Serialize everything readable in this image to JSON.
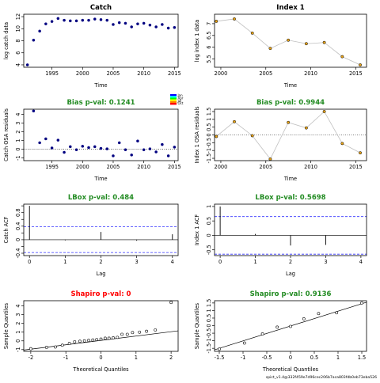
{
  "chart_data": [
    {
      "type": "scatter",
      "title": "Catch",
      "title_color": "#000000",
      "xlabel": "Time",
      "ylabel": "log catch data",
      "xlim": [
        1990.4,
        2015.6
      ],
      "ylim": [
        3.6,
        12.4
      ],
      "xticks": [
        1995,
        2000,
        2005,
        2010,
        2015
      ],
      "yticks": [
        4,
        6,
        8,
        10,
        12
      ],
      "connect": false,
      "point_style": "filled-navy",
      "x": [
        1991,
        1992,
        1993,
        1994,
        1995,
        1996,
        1997,
        1998,
        1999,
        2000,
        2001,
        2002,
        2003,
        2004,
        2005,
        2006,
        2007,
        2008,
        2009,
        2010,
        2011,
        2012,
        2013,
        2014,
        2015
      ],
      "y": [
        4.0,
        8.1,
        9.6,
        10.8,
        11.2,
        11.7,
        11.4,
        11.3,
        11.3,
        11.4,
        11.4,
        11.6,
        11.5,
        11.4,
        10.7,
        11.0,
        10.9,
        10.3,
        10.8,
        10.9,
        10.6,
        10.3,
        10.7,
        10.1,
        10.2
      ]
    },
    {
      "type": "line",
      "title": "Index 1",
      "title_color": "#000000",
      "xlabel": "Time",
      "ylabel": "log index 1 data",
      "xlim": [
        1999.3,
        2016.2
      ],
      "ylim": [
        5.15,
        7.4
      ],
      "xticks": [
        2000,
        2005,
        2010,
        2015
      ],
      "yticks": [
        5.5,
        6.0,
        6.5,
        7.0
      ],
      "connect": true,
      "point_style": "orange",
      "x": [
        1999.5,
        2001.5,
        2003.5,
        2005.5,
        2007.5,
        2009.5,
        2011.5,
        2013.5,
        2015.5
      ],
      "y": [
        7.1,
        7.2,
        6.6,
        5.95,
        6.3,
        6.15,
        6.2,
        5.6,
        5.25
      ]
    },
    {
      "type": "scatter",
      "title": "Bias p-val: 0.1241",
      "title_color": "#228B22",
      "xlabel": "Time",
      "ylabel": "Catch OSA residuals",
      "xlim": [
        1990.4,
        2015.6
      ],
      "ylim": [
        -1.3,
        4.6
      ],
      "xticks": [
        1995,
        2000,
        2005,
        2010,
        2015
      ],
      "yticks": [
        -1,
        0,
        1,
        2,
        3,
        4
      ],
      "hline": 0,
      "hline_style": "dotted",
      "connect": false,
      "point_style": "filled-navy",
      "x": [
        1992,
        1993,
        1994,
        1995,
        1996,
        1997,
        1998,
        1999,
        2000,
        2001,
        2002,
        2003,
        2004,
        2005,
        2006,
        2007,
        2008,
        2009,
        2010,
        2011,
        2012,
        2013,
        2014,
        2015
      ],
      "y": [
        4.4,
        0.75,
        1.2,
        0.15,
        1.05,
        -0.35,
        0.3,
        -0.05,
        0.35,
        0.2,
        0.3,
        0.1,
        0.05,
        -0.75,
        0.75,
        -0.05,
        -0.65,
        0.95,
        -0.05,
        0.05,
        -0.3,
        0.55,
        -0.75,
        0.25
      ],
      "legend": {
        "placement": "top-right",
        "entries": [
          "Jan",
          "Apr",
          "Jul",
          "Oct"
        ],
        "colors": [
          "#0000ff",
          "#00ffff",
          "#00ff00",
          "#ffff00",
          "#ff8000",
          "#ff0000"
        ]
      }
    },
    {
      "type": "line",
      "title": "Bias p-val: 0.9944",
      "title_color": "#228B22",
      "xlabel": "Time",
      "ylabel": "Index 1 OSA residuals",
      "xlim": [
        1999.3,
        2016.2
      ],
      "ylim": [
        -1.65,
        1.65
      ],
      "xticks": [
        2000,
        2005,
        2010,
        2015
      ],
      "yticks": [
        -1.5,
        -1.0,
        -0.5,
        0.0,
        0.5,
        1.0,
        1.5
      ],
      "ytick_labels": [
        "-1.5",
        "-1",
        "-0.5",
        "0",
        "0.5",
        "1",
        "1.5"
      ],
      "hline": 0,
      "hline_style": "dotted",
      "connect": true,
      "point_style": "orange",
      "x": [
        1999.5,
        2001.5,
        2003.5,
        2005.5,
        2007.5,
        2009.5,
        2011.5,
        2013.5,
        2015.5
      ],
      "y": [
        -0.1,
        0.85,
        -0.05,
        -1.55,
        0.8,
        0.45,
        1.5,
        -0.55,
        -1.15
      ]
    },
    {
      "type": "bar",
      "title": "LBox p-val: 0.484",
      "title_color": "#228B22",
      "xlabel": "Lag",
      "ylabel": "Catch ACF",
      "xlim": [
        -0.16,
        4.16
      ],
      "ylim": [
        -0.47,
        1.05
      ],
      "xticks": [
        0,
        1,
        2,
        3,
        4
      ],
      "yticks": [
        -0.4,
        -0.2,
        0.0,
        0.2,
        0.4,
        0.6,
        0.8,
        1.0
      ],
      "ytick_labels": [
        "-0.4",
        "",
        "0",
        "",
        "0.4",
        "",
        "0.8",
        ""
      ],
      "lags": [
        0,
        1,
        2,
        3,
        4
      ],
      "acf": [
        1.0,
        -0.02,
        0.23,
        -0.03,
        0.16
      ],
      "conf_upper": 0.38,
      "conf_lower": -0.38
    },
    {
      "type": "bar",
      "title": "LBox p-val: 0.5698",
      "title_color": "#228B22",
      "xlabel": "Lag",
      "ylabel": "Index 1 ACF",
      "xlim": [
        -0.16,
        4.16
      ],
      "ylim": [
        -0.7,
        1.08
      ],
      "xticks": [
        0,
        1,
        2,
        3,
        4
      ],
      "yticks": [
        -0.5,
        0.0,
        0.5,
        1.0
      ],
      "ytick_labels": [
        "-0.5",
        "0",
        "0.5",
        "1"
      ],
      "lags": [
        0,
        1,
        2,
        3
      ],
      "acf": [
        1.0,
        0.05,
        -0.35,
        -0.33
      ],
      "conf_upper": 0.65,
      "conf_lower": -0.65
    },
    {
      "type": "scatter",
      "title": "Shapiro p-val: 0",
      "title_color": "#ff0000",
      "xlabel": "Theoretical Quantiles",
      "ylabel": "Sample Quantiles",
      "xlim": [
        -2.2,
        2.2
      ],
      "ylim": [
        -1.2,
        4.6
      ],
      "xticks": [
        -2,
        -1,
        0,
        1,
        2
      ],
      "yticks": [
        -1,
        0,
        1,
        2,
        3,
        4
      ],
      "connect": false,
      "point_style": "open",
      "qq_line": [
        [
          -2.2,
          -1.05
        ],
        [
          2.2,
          1.15
        ]
      ],
      "x": [
        -2.0,
        -1.55,
        -1.3,
        -1.1,
        -0.9,
        -0.75,
        -0.6,
        -0.47,
        -0.35,
        -0.23,
        -0.12,
        0.0,
        0.12,
        0.23,
        0.35,
        0.47,
        0.6,
        0.75,
        0.9,
        1.1,
        1.3,
        1.55,
        2.0
      ],
      "y": [
        -0.9,
        -0.75,
        -0.7,
        -0.5,
        -0.3,
        -0.1,
        -0.05,
        0.0,
        0.05,
        0.1,
        0.15,
        0.2,
        0.3,
        0.3,
        0.35,
        0.4,
        0.75,
        0.75,
        0.95,
        1.0,
        1.1,
        1.25,
        4.4
      ]
    },
    {
      "type": "scatter",
      "title": "Shapiro p-val: 0.9136",
      "title_color": "#228B22",
      "xlabel": "Theoretical Quantiles",
      "ylabel": "Sample Quantiles",
      "xlim": [
        -1.6,
        1.6
      ],
      "ylim": [
        -1.7,
        1.65
      ],
      "xticks": [
        -1.5,
        -1.0,
        -0.5,
        0.0,
        0.5,
        1.0,
        1.5
      ],
      "xtick_labels": [
        "-1.5",
        "-1",
        "-0.5",
        "0",
        "0.5",
        "1",
        "1.5"
      ],
      "yticks": [
        -1.5,
        -1.0,
        -0.5,
        0.0,
        0.5,
        1.0,
        1.5
      ],
      "ytick_labels": [
        "-1.5",
        "-1",
        "-0.5",
        "0",
        "0.5",
        "1",
        "1.5"
      ],
      "connect": false,
      "point_style": "open",
      "qq_line": [
        [
          -1.6,
          -1.6
        ],
        [
          1.6,
          1.55
        ]
      ],
      "x": [
        -1.5,
        -0.97,
        -0.59,
        -0.28,
        0.0,
        0.28,
        0.59,
        0.97,
        1.5
      ],
      "y": [
        -1.55,
        -1.15,
        -0.55,
        -0.1,
        -0.05,
        0.45,
        0.8,
        0.85,
        1.5
      ]
    }
  ],
  "footer": "spict_v1.4@332f459e7d96cec206b7aca803fdb0eb73eba526"
}
